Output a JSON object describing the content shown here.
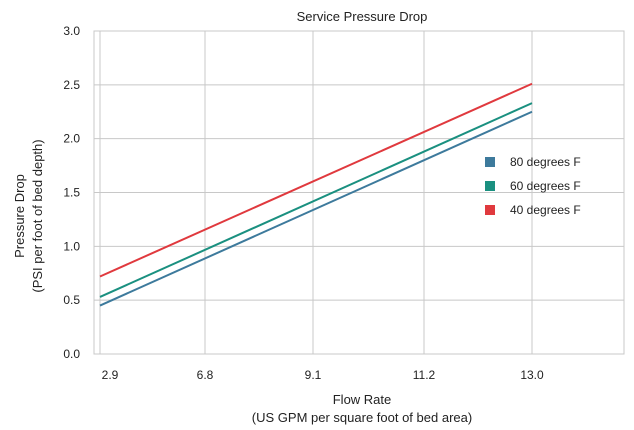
{
  "chart_data": {
    "type": "line",
    "title": "Service Pressure Drop",
    "xlabel": "Flow Rate",
    "xlabel_sub": "(US GPM per square foot of bed area)",
    "ylabel": "Pressure Drop",
    "ylabel_sub": "(PSI per foot of bed depth)",
    "x_ticks": [
      "2.9",
      "6.8",
      "9.1",
      "11.2",
      "13.0"
    ],
    "y_ticks": [
      "0.0",
      "0.5",
      "1.0",
      "1.5",
      "2.0",
      "2.5",
      "3.0"
    ],
    "ylim": [
      0,
      3
    ],
    "grid": true,
    "legend_position": "right",
    "series": [
      {
        "name": "80 degrees F",
        "color": "#3d7a9c",
        "x": [
          2.9,
          13.0
        ],
        "y": [
          0.45,
          2.25
        ]
      },
      {
        "name": "60 degrees F",
        "color": "#1a9080",
        "x": [
          2.9,
          13.0
        ],
        "y": [
          0.53,
          2.33
        ]
      },
      {
        "name": "40 degrees F",
        "color": "#e0393e",
        "x": [
          2.9,
          13.0
        ],
        "y": [
          0.72,
          2.51
        ]
      }
    ]
  }
}
